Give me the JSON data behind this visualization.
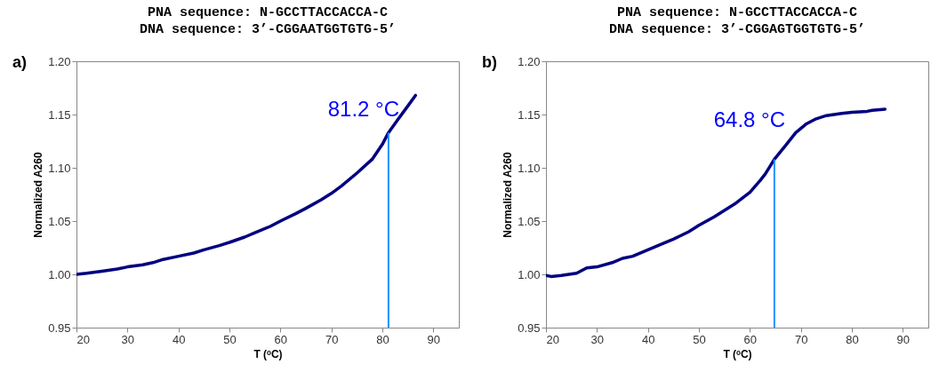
{
  "chart_data": [
    {
      "type": "line",
      "title": "PNA sequence: N-GCCTTACCACCA-C",
      "subtitle": "DNA sequence: 3’-CGGAATGGTGTG-5’",
      "xlabel": "T (ᵒC)",
      "ylabel": "Normalized A260",
      "annotations": [
        "a)"
      ],
      "series": [
        {
          "color": "#000080",
          "x": [
            20,
            22,
            25,
            28,
            30,
            33,
            35,
            37,
            40,
            43,
            45,
            48,
            50,
            53,
            55,
            58,
            60,
            63,
            65,
            68,
            70,
            72,
            75,
            78,
            80,
            81.2,
            83,
            85,
            86.5
          ],
          "values": [
            1.0,
            1.001,
            1.003,
            1.005,
            1.007,
            1.009,
            1.011,
            1.014,
            1.017,
            1.02,
            1.023,
            1.027,
            1.03,
            1.035,
            1.039,
            1.045,
            1.05,
            1.057,
            1.062,
            1.07,
            1.076,
            1.083,
            1.095,
            1.108,
            1.122,
            1.133,
            1.145,
            1.158,
            1.168
          ]
        }
      ],
      "xlim": [
        20,
        95
      ],
      "xticks": [
        20,
        30,
        40,
        50,
        60,
        70,
        80,
        90
      ],
      "ylim": [
        0.95,
        1.2
      ],
      "yticks": [
        {
          "value": 0.95,
          "label": "0.95"
        },
        {
          "value": 1,
          "label": "1.00"
        },
        {
          "value": 1.05,
          "label": "1.05"
        },
        {
          "value": 1.1,
          "label": "1.10"
        },
        {
          "value": 1.15,
          "label": "1.15"
        },
        {
          "value": 1.2,
          "label": "1.20"
        }
      ],
      "ref_lines": [
        {
          "axis": "x",
          "value": 81.2,
          "label": "81.2 °C",
          "color": "#1e90ff"
        }
      ]
    },
    {
      "type": "line",
      "title": "PNA sequence: N-GCCTTACCACCA-C",
      "subtitle": "DNA sequence: 3’-CGGAGTGGTGTG-5’",
      "xlabel": "T (ᵒC)",
      "ylabel": "Normalized A260",
      "annotations": [
        "b)"
      ],
      "series": [
        {
          "color": "#000080",
          "x": [
            20,
            21,
            23,
            26,
            28,
            30,
            33,
            35,
            37,
            40,
            43,
            45,
            48,
            50,
            53,
            55,
            57,
            60,
            62,
            63,
            64.8,
            67,
            69,
            71,
            73,
            75,
            78,
            80,
            83,
            84,
            86.5
          ],
          "values": [
            0.999,
            0.998,
            0.999,
            1.001,
            1.006,
            1.007,
            1.011,
            1.015,
            1.017,
            1.023,
            1.029,
            1.033,
            1.04,
            1.046,
            1.054,
            1.06,
            1.066,
            1.077,
            1.088,
            1.094,
            1.108,
            1.121,
            1.133,
            1.141,
            1.146,
            1.149,
            1.151,
            1.152,
            1.153,
            1.154,
            1.155
          ]
        }
      ],
      "xlim": [
        20,
        95
      ],
      "xticks": [
        20,
        30,
        40,
        50,
        60,
        70,
        80,
        90
      ],
      "ylim": [
        0.95,
        1.2
      ],
      "yticks": [
        {
          "value": 0.95,
          "label": "0.95"
        },
        {
          "value": 1,
          "label": "1.00"
        },
        {
          "value": 1.05,
          "label": "1.05"
        },
        {
          "value": 1.1,
          "label": "1.10"
        },
        {
          "value": 1.15,
          "label": "1.15"
        },
        {
          "value": 1.2,
          "label": "1.20"
        }
      ],
      "ref_lines": [
        {
          "axis": "x",
          "value": 64.8,
          "label": "64.8 °C",
          "color": "#1e90ff"
        }
      ]
    }
  ]
}
